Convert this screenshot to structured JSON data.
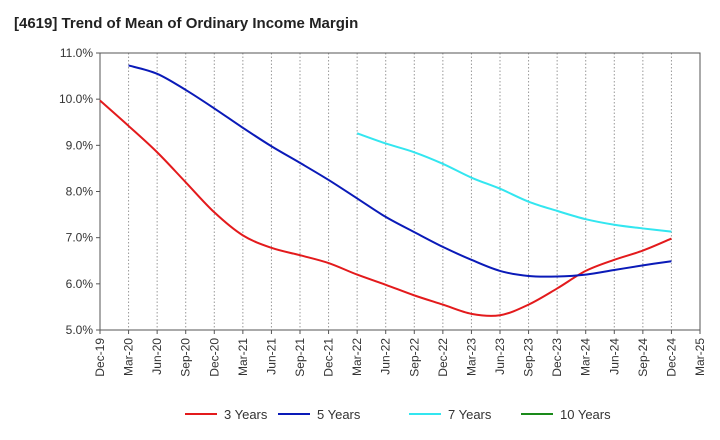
{
  "chart_data": {
    "type": "line",
    "title": "[4619]  Trend of Mean of Ordinary Income Margin",
    "xlabel": "",
    "ylabel": "",
    "x_tick_labels": [
      "Dec-19",
      "Mar-20",
      "Jun-20",
      "Sep-20",
      "Dec-20",
      "Mar-21",
      "Jun-21",
      "Sep-21",
      "Dec-21",
      "Mar-22",
      "Jun-22",
      "Sep-22",
      "Dec-22",
      "Mar-23",
      "Jun-23",
      "Sep-23",
      "Dec-23",
      "Mar-24",
      "Jun-24",
      "Sep-24",
      "Dec-24",
      "Mar-25"
    ],
    "y_tick_labels": [
      "5.0%",
      "6.0%",
      "7.0%",
      "8.0%",
      "9.0%",
      "10.0%",
      "11.0%"
    ],
    "ylim": [
      5.0,
      11.0
    ],
    "y_ticks": [
      5,
      6,
      7,
      8,
      9,
      10,
      11
    ],
    "grid": "vertical dotted",
    "legend_position": "bottom",
    "series": [
      {
        "name": "3 Years",
        "color": "#e31a1c",
        "points": [
          [
            "Dec-19",
            9.97
          ],
          [
            "Mar-20",
            9.42
          ],
          [
            "Jun-20",
            8.85
          ],
          [
            "Sep-20",
            8.2
          ],
          [
            "Dec-20",
            7.55
          ],
          [
            "Mar-21",
            7.05
          ],
          [
            "Jun-21",
            6.78
          ],
          [
            "Sep-21",
            6.62
          ],
          [
            "Dec-21",
            6.45
          ],
          [
            "Mar-22",
            6.2
          ],
          [
            "Jun-22",
            5.98
          ],
          [
            "Sep-22",
            5.75
          ],
          [
            "Dec-22",
            5.55
          ],
          [
            "Mar-23",
            5.35
          ],
          [
            "Jun-23",
            5.32
          ],
          [
            "Sep-23",
            5.55
          ],
          [
            "Dec-23",
            5.9
          ],
          [
            "Mar-24",
            6.28
          ],
          [
            "Jun-24",
            6.52
          ],
          [
            "Sep-24",
            6.72
          ],
          [
            "Dec-24",
            6.98
          ]
        ]
      },
      {
        "name": "5 Years",
        "color": "#0a1ab8",
        "points": [
          [
            "Mar-20",
            10.73
          ],
          [
            "Jun-20",
            10.55
          ],
          [
            "Sep-20",
            10.2
          ],
          [
            "Dec-20",
            9.8
          ],
          [
            "Mar-21",
            9.38
          ],
          [
            "Jun-21",
            8.98
          ],
          [
            "Sep-21",
            8.62
          ],
          [
            "Dec-21",
            8.25
          ],
          [
            "Mar-22",
            7.85
          ],
          [
            "Jun-22",
            7.45
          ],
          [
            "Sep-22",
            7.12
          ],
          [
            "Dec-22",
            6.8
          ],
          [
            "Mar-23",
            6.52
          ],
          [
            "Jun-23",
            6.28
          ],
          [
            "Sep-23",
            6.17
          ],
          [
            "Dec-23",
            6.16
          ],
          [
            "Mar-24",
            6.2
          ],
          [
            "Jun-24",
            6.3
          ],
          [
            "Sep-24",
            6.4
          ],
          [
            "Dec-24",
            6.49
          ]
        ]
      },
      {
        "name": "7 Years",
        "color": "#33e6f0",
        "points": [
          [
            "Mar-22",
            9.26
          ],
          [
            "Jun-22",
            9.04
          ],
          [
            "Sep-22",
            8.85
          ],
          [
            "Dec-22",
            8.6
          ],
          [
            "Mar-23",
            8.3
          ],
          [
            "Jun-23",
            8.06
          ],
          [
            "Sep-23",
            7.78
          ],
          [
            "Dec-23",
            7.58
          ],
          [
            "Mar-24",
            7.4
          ],
          [
            "Jun-24",
            7.28
          ],
          [
            "Sep-24",
            7.2
          ],
          [
            "Dec-24",
            7.13
          ]
        ]
      },
      {
        "name": "10 Years",
        "color": "#1a8a1a",
        "points": []
      }
    ]
  }
}
